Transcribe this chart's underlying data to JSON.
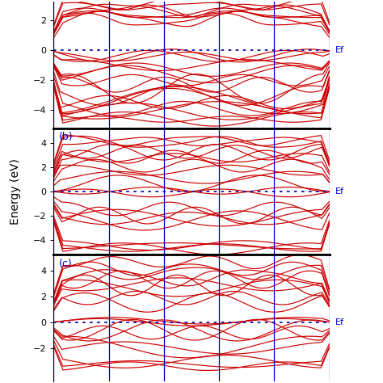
{
  "ylabel": "Energy (eV)",
  "ef_label": "Ef",
  "ef_color": "#0000cc",
  "line_color": "#cc0000",
  "vline_color": "#0000cc",
  "dotted_color": "#1111aa",
  "n_kpoints": 300,
  "ylim_a": [
    -5.2,
    3.2
  ],
  "ylim_b": [
    -5.2,
    5.2
  ],
  "ylim_c": [
    -4.5,
    5.2
  ],
  "yticks_a": [
    -4,
    -2,
    0,
    2
  ],
  "yticks_b": [
    -4,
    -2,
    0,
    2,
    4
  ],
  "yticks_c": [
    -2,
    0,
    2,
    4
  ],
  "n_vlines_interior": 4,
  "background_color": "#ffffff",
  "lw": 0.85
}
